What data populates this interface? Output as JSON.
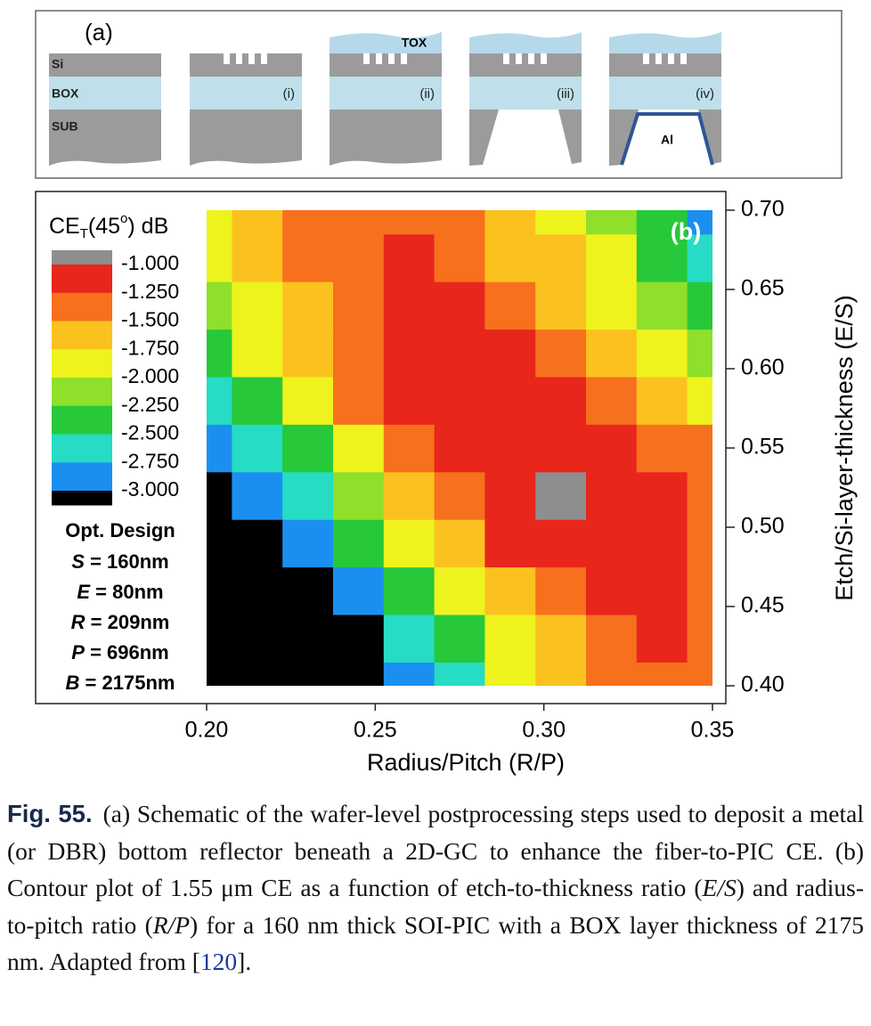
{
  "panel_a": {
    "label": "(a)",
    "layers": [
      "Si",
      "BOX",
      "SUB"
    ],
    "tox": "TOX",
    "steps": [
      "(i)",
      "(ii)",
      "(iii)",
      "(iv)"
    ],
    "metal": "Al"
  },
  "chart_data": {
    "type": "contour",
    "panel_label": "(b)",
    "x_label": "Radius/Pitch (R/P)",
    "y_label": "Etch/Si-layer-thickness (E/S)",
    "x": [
      0.2,
      0.215,
      0.23,
      0.245,
      0.26,
      0.275,
      0.29,
      0.305,
      0.32,
      0.335,
      0.35
    ],
    "y": [
      0.4,
      0.43,
      0.46,
      0.49,
      0.52,
      0.55,
      0.58,
      0.61,
      0.64,
      0.67,
      0.7
    ],
    "z": [
      [
        -3.5,
        -3.5,
        -3.4,
        -3.2,
        -3.0,
        -2.6,
        -2.0,
        -1.7,
        -1.5,
        -1.45,
        -1.4
      ],
      [
        -3.5,
        -3.4,
        -3.3,
        -3.1,
        -2.7,
        -2.3,
        -1.9,
        -1.6,
        -1.4,
        -1.2,
        -1.35
      ],
      [
        -3.4,
        -3.3,
        -3.1,
        -2.8,
        -2.3,
        -2.0,
        -1.7,
        -1.4,
        -1.2,
        -1.1,
        -1.3
      ],
      [
        -3.3,
        -3.1,
        -2.9,
        -2.4,
        -2.0,
        -1.6,
        -1.2,
        -1.05,
        -1.1,
        -1.15,
        -1.3
      ],
      [
        -3.2,
        -3.0,
        -2.6,
        -2.1,
        -1.7,
        -1.4,
        -1.15,
        -0.95,
        -1.1,
        -1.2,
        -1.35
      ],
      [
        -3.0,
        -2.7,
        -2.3,
        -1.8,
        -1.5,
        -1.2,
        -1.1,
        -1.15,
        -1.2,
        -1.35,
        -1.5
      ],
      [
        -2.6,
        -2.3,
        -1.9,
        -1.5,
        -1.2,
        -1.1,
        -1.15,
        -1.25,
        -1.4,
        -1.6,
        -1.8
      ],
      [
        -2.3,
        -2.0,
        -1.7,
        -1.35,
        -1.15,
        -1.1,
        -1.2,
        -1.3,
        -1.55,
        -1.85,
        -2.05
      ],
      [
        -2.1,
        -1.85,
        -1.6,
        -1.3,
        -1.15,
        -1.2,
        -1.35,
        -1.55,
        -1.8,
        -2.1,
        -2.3
      ],
      [
        -1.95,
        -1.7,
        -1.5,
        -1.3,
        -1.25,
        -1.35,
        -1.55,
        -1.75,
        -2.0,
        -2.3,
        -2.6
      ],
      [
        -1.9,
        -1.65,
        -1.45,
        -1.3,
        -1.35,
        -1.45,
        -1.6,
        -1.85,
        -2.15,
        -2.5,
        -2.9
      ]
    ],
    "xlim": [
      0.2,
      0.35
    ],
    "ylim": [
      0.4,
      0.7
    ],
    "xticks": [
      {
        "value": 0.2,
        "label": "0.20"
      },
      {
        "value": 0.25,
        "label": "0.25"
      },
      {
        "value": 0.3,
        "label": "0.30"
      },
      {
        "value": 0.35,
        "label": "0.35"
      }
    ],
    "yticks": [
      {
        "value": 0.4,
        "label": "0.40"
      },
      {
        "value": 0.45,
        "label": "0.45"
      },
      {
        "value": 0.5,
        "label": "0.50"
      },
      {
        "value": 0.55,
        "label": "0.55"
      },
      {
        "value": 0.6,
        "label": "0.60"
      },
      {
        "value": 0.65,
        "label": "0.65"
      },
      {
        "value": 0.7,
        "label": "0.70"
      }
    ],
    "colorbar": {
      "title": [
        "CE",
        "T",
        "(45",
        "o",
        ") dB"
      ],
      "levels": [
        {
          "value": -1,
          "label": "-1.000"
        },
        {
          "value": -1.25,
          "label": "-1.250"
        },
        {
          "value": -1.5,
          "label": "-1.500"
        },
        {
          "value": -1.75,
          "label": "-1.750"
        },
        {
          "value": -2,
          "label": "-2.000"
        },
        {
          "value": -2.25,
          "label": "-2.250"
        },
        {
          "value": -2.5,
          "label": "-2.500"
        },
        {
          "value": -2.75,
          "label": "-2.750"
        },
        {
          "value": -3,
          "label": "-3.000"
        }
      ],
      "colors": [
        "#8e8e8e",
        "#e8261c",
        "#f7701d",
        "#fbc21f",
        "#eef31e",
        "#8ee02a",
        "#27c83a",
        "#26dcc4",
        "#1b8ff0",
        "#000000"
      ]
    },
    "design": {
      "title": "Opt. Design",
      "params": [
        {
          "symbol": "S",
          "text": " = 160nm"
        },
        {
          "symbol": "E",
          "text": " = 80nm"
        },
        {
          "symbol": "R",
          "text": " = 209nm"
        },
        {
          "symbol": "P",
          "text": " = 696nm"
        },
        {
          "symbol": "B",
          "text": " = 2175nm"
        }
      ]
    }
  },
  "caption": {
    "label": "Fig. 55.",
    "text1": "(a) Schematic of the wafer-level postprocessing steps used to deposit a metal (or DBR) bottom reflector beneath a 2D-GC to enhance the fiber-to-PIC CE. (b) Contour plot of 1.55 μm CE as a function of etch-to-thickness ratio (",
    "es": "E/S",
    "text2": ") and radius-to-pitch ratio (",
    "rp": "R/P",
    "text3": ") for a 160 nm thick SOI-PIC with a BOX layer thickness of 2175 nm. Adapted from [",
    "ref": "120",
    "text4": "]."
  }
}
